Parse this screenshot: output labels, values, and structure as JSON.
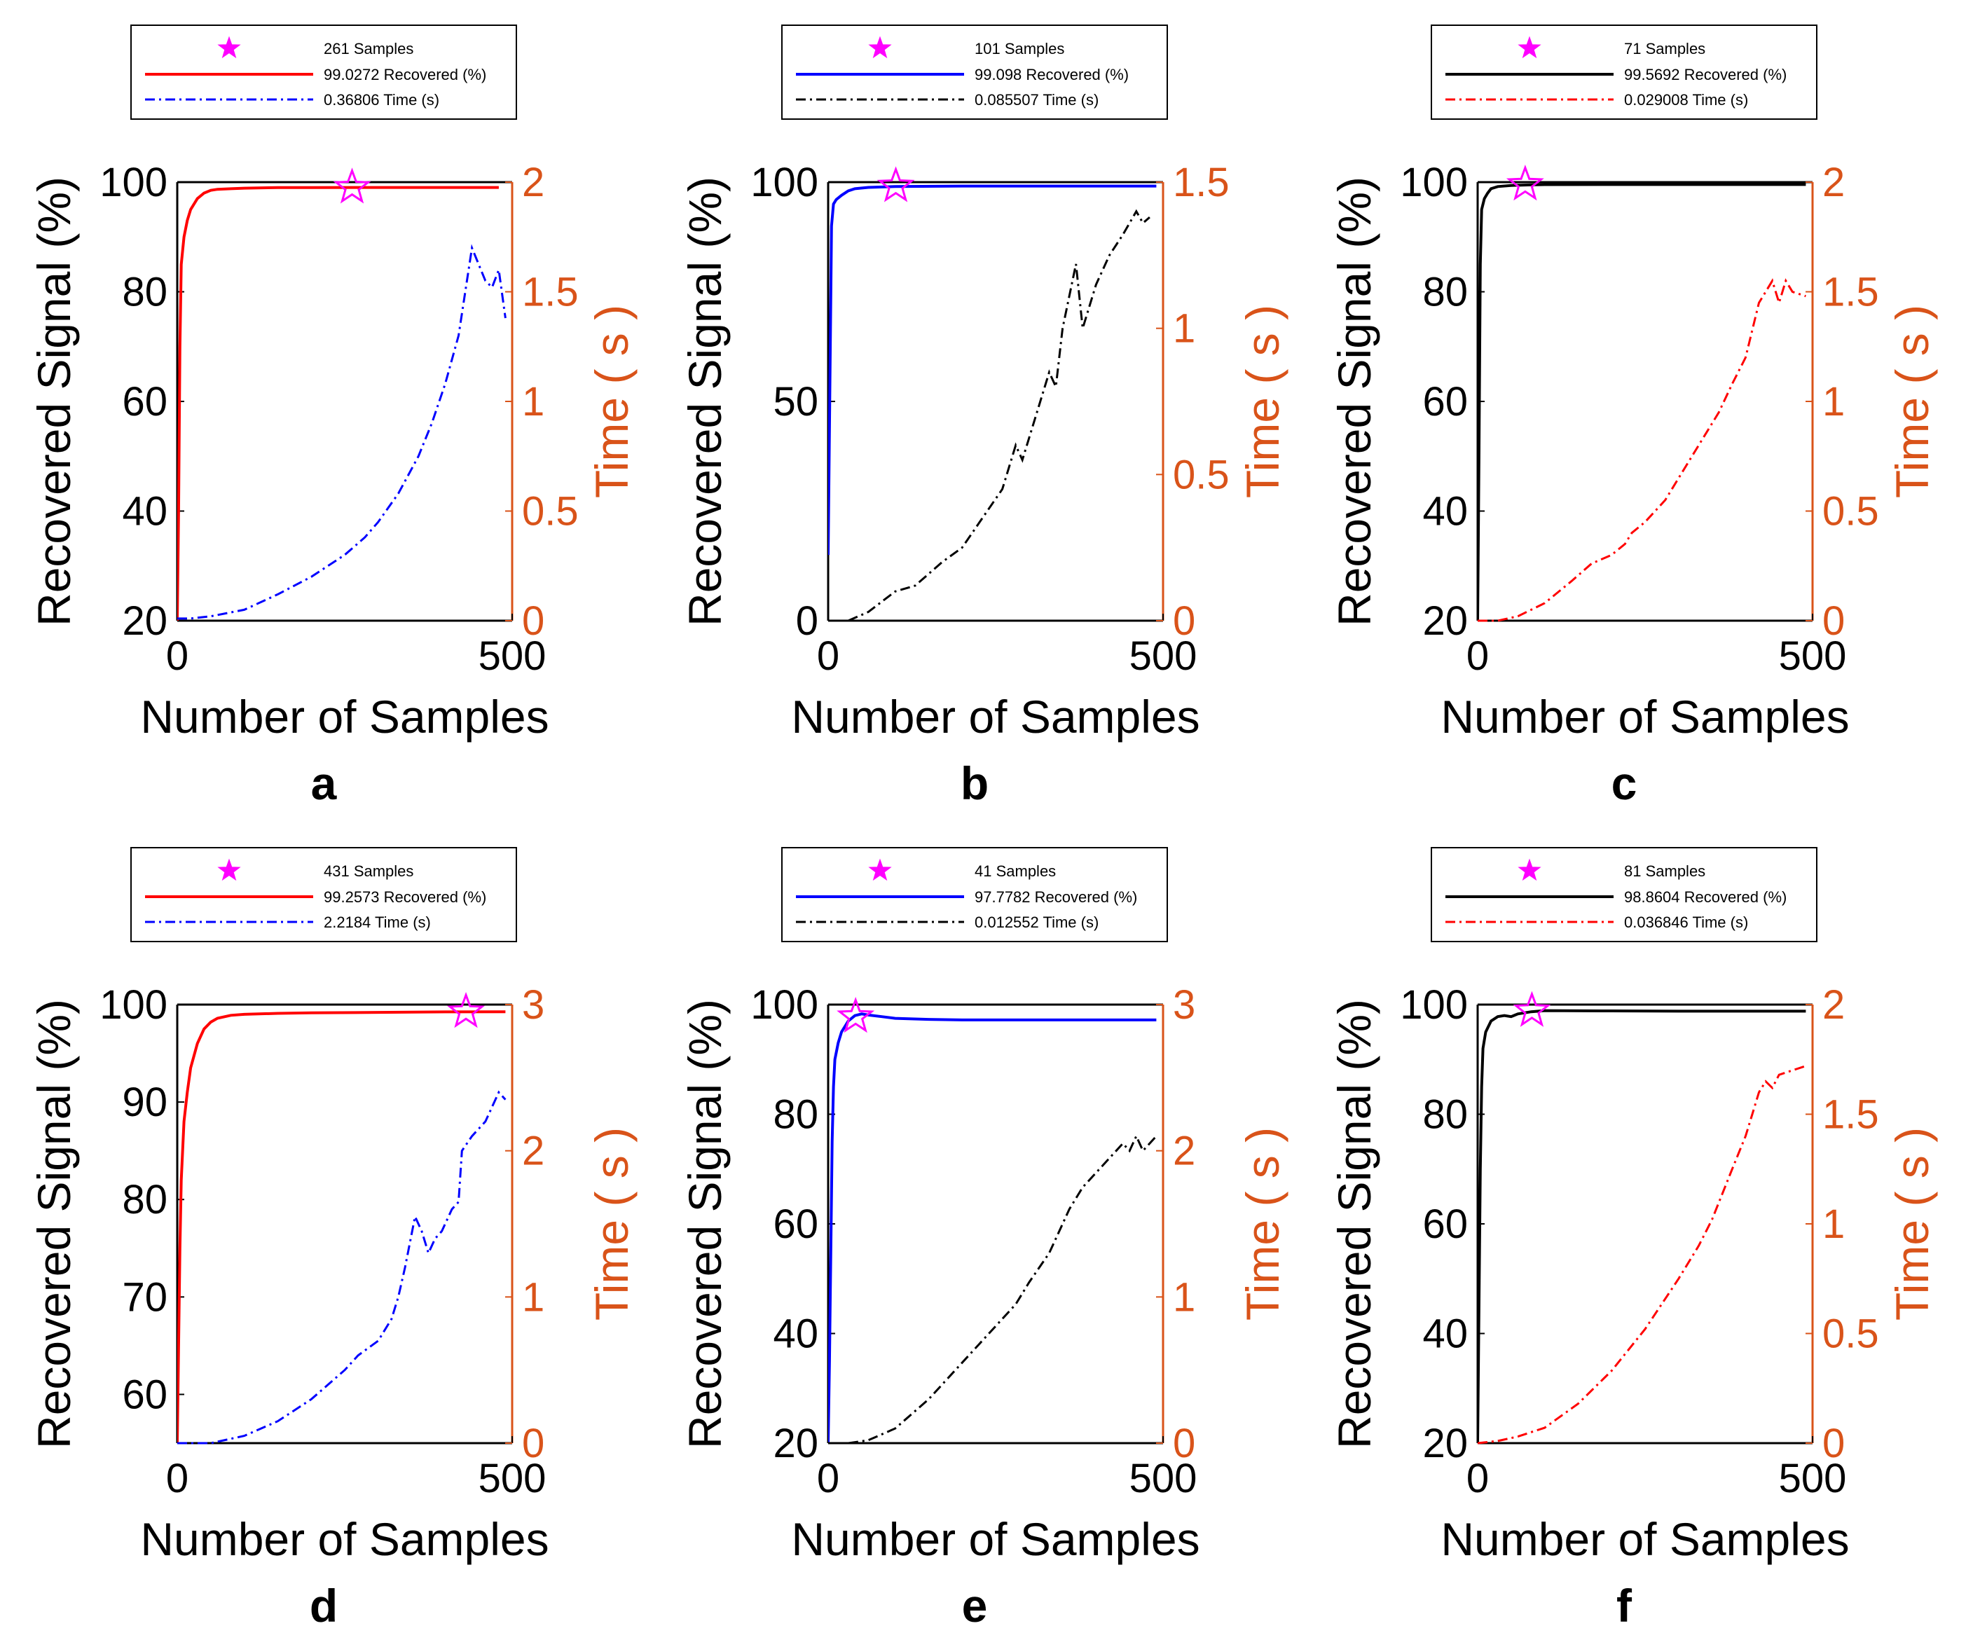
{
  "figure": {
    "xlabel": "Number of Samples",
    "ylabel_left": "Recovered Signal (%)",
    "ylabel_right": "Time ( s )"
  },
  "colors": {
    "right_axis": "#D95319",
    "star": "#FF00FF",
    "axis": "#000000"
  },
  "chart_data": [
    {
      "panel": "a",
      "type": "line",
      "xlim": [
        0,
        500
      ],
      "xticks": [
        0,
        500
      ],
      "ylim_left": [
        20,
        100
      ],
      "yticks_left": [
        20,
        40,
        60,
        80,
        100
      ],
      "ylim_right": [
        0,
        2
      ],
      "yticks_right": [
        0,
        0.5,
        1,
        1.5,
        2
      ],
      "xlabel": "Number of Samples",
      "ylabel_left": "Recovered Signal (%)",
      "ylabel_right": "Time ( s )",
      "recovered": {
        "color": "#FF0000",
        "style": "solid",
        "x": [
          0,
          2,
          4,
          6,
          10,
          15,
          20,
          30,
          40,
          50,
          60,
          80,
          100,
          150,
          200,
          300,
          400,
          480
        ],
        "y": [
          20,
          40,
          70,
          85,
          90,
          93,
          95,
          97,
          98,
          98.5,
          98.7,
          98.8,
          98.9,
          99.0,
          99.0,
          99.03,
          99.03,
          99.03
        ]
      },
      "time": {
        "color": "#0000FF",
        "style": "dashdot",
        "x": [
          0,
          20,
          50,
          100,
          150,
          200,
          250,
          280,
          300,
          330,
          360,
          380,
          400,
          420,
          440,
          460,
          470,
          480,
          490
        ],
        "y": [
          0.01,
          0.01,
          0.02,
          0.05,
          0.12,
          0.2,
          0.3,
          0.38,
          0.45,
          0.58,
          0.75,
          0.9,
          1.08,
          1.3,
          1.7,
          1.55,
          1.52,
          1.6,
          1.38
        ]
      },
      "marker": {
        "x": 261,
        "y": 99.0272
      },
      "legend": [
        "261 Samples",
        "99.0272 Recovered (%)",
        "0.36806 Time (s)"
      ]
    },
    {
      "panel": "b",
      "type": "line",
      "xlim": [
        0,
        500
      ],
      "xticks": [
        0,
        500
      ],
      "ylim_left": [
        0,
        100
      ],
      "yticks_left": [
        0,
        50,
        100
      ],
      "ylim_right": [
        0,
        1.5
      ],
      "yticks_right": [
        0,
        0.5,
        1,
        1.5
      ],
      "xlabel": "Number of Samples",
      "ylabel_left": "Recovered Signal (%)",
      "ylabel_right": "Time ( s )",
      "recovered": {
        "color": "#0000FF",
        "style": "solid",
        "x": [
          0,
          3,
          5,
          8,
          12,
          20,
          30,
          40,
          60,
          100,
          200,
          300,
          400,
          490
        ],
        "y": [
          15,
          60,
          90,
          95,
          96,
          97,
          98,
          98.5,
          98.8,
          99.0,
          99.1,
          99.1,
          99.1,
          99.1
        ]
      },
      "time": {
        "color": "#000000",
        "style": "dashdot",
        "x": [
          0,
          30,
          60,
          100,
          130,
          170,
          200,
          230,
          260,
          280,
          290,
          310,
          330,
          340,
          350,
          370,
          380,
          400,
          420,
          440,
          460,
          470,
          480
        ],
        "y": [
          0,
          0,
          0.03,
          0.1,
          0.12,
          0.2,
          0.25,
          0.35,
          0.45,
          0.6,
          0.55,
          0.7,
          0.85,
          0.8,
          1.0,
          1.22,
          1.0,
          1.15,
          1.25,
          1.32,
          1.4,
          1.36,
          1.38
        ]
      },
      "marker": {
        "x": 101,
        "y": 99.098
      },
      "legend": [
        "101 Samples",
        "99.098 Recovered (%)",
        "0.085507 Time (s)"
      ]
    },
    {
      "panel": "c",
      "type": "line",
      "xlim": [
        0,
        500
      ],
      "xticks": [
        0,
        500
      ],
      "ylim_left": [
        20,
        100
      ],
      "yticks_left": [
        20,
        40,
        60,
        80,
        100
      ],
      "ylim_right": [
        0,
        2
      ],
      "yticks_right": [
        0,
        0.5,
        1,
        1.5,
        2
      ],
      "xlabel": "Number of Samples",
      "ylabel_left": "Recovered Signal (%)",
      "ylabel_right": "Time ( s )",
      "recovered": {
        "color": "#000000",
        "style": "solid",
        "x": [
          0,
          2,
          4,
          6,
          10,
          15,
          20,
          30,
          50,
          80,
          100,
          200,
          300,
          400,
          490
        ],
        "y": [
          20,
          50,
          85,
          95,
          97,
          98,
          98.8,
          99.2,
          99.4,
          99.5,
          99.55,
          99.56,
          99.56,
          99.57,
          99.57
        ]
      },
      "time": {
        "color": "#FF0000",
        "style": "dashdot",
        "x": [
          0,
          30,
          60,
          100,
          140,
          170,
          200,
          220,
          230,
          250,
          280,
          300,
          330,
          360,
          380,
          400,
          420,
          430,
          440,
          450,
          460,
          470,
          490
        ],
        "y": [
          0,
          0,
          0.02,
          0.08,
          0.18,
          0.26,
          0.3,
          0.35,
          0.4,
          0.45,
          0.55,
          0.65,
          0.8,
          0.95,
          1.08,
          1.2,
          1.45,
          1.5,
          1.55,
          1.45,
          1.55,
          1.5,
          1.48
        ]
      },
      "marker": {
        "x": 71,
        "y": 99.5692
      },
      "legend": [
        "71 Samples",
        "99.5692 Recovered (%)",
        "0.029008 Time (s)"
      ]
    },
    {
      "panel": "d",
      "type": "line",
      "xlim": [
        0,
        500
      ],
      "xticks": [
        0,
        500
      ],
      "ylim_left": [
        55,
        100
      ],
      "yticks_left": [
        60,
        70,
        80,
        90,
        100
      ],
      "ylim_right": [
        0,
        3
      ],
      "yticks_right": [
        0,
        1,
        2,
        3
      ],
      "xlabel": "Number of Samples",
      "ylabel_left": "Recovered Signal (%)",
      "ylabel_right": "Time ( s )",
      "recovered": {
        "color": "#FF0000",
        "style": "solid",
        "x": [
          0,
          2,
          4,
          6,
          10,
          15,
          20,
          30,
          40,
          50,
          60,
          80,
          100,
          150,
          200,
          300,
          400,
          490
        ],
        "y": [
          55,
          65,
          75,
          82,
          88,
          91,
          93.5,
          96,
          97.5,
          98.2,
          98.6,
          98.9,
          99.0,
          99.1,
          99.15,
          99.2,
          99.25,
          99.26
        ]
      },
      "time": {
        "color": "#0000FF",
        "style": "dashdot",
        "x": [
          0,
          50,
          100,
          150,
          200,
          250,
          270,
          300,
          320,
          330,
          340,
          355,
          365,
          375,
          385,
          395,
          410,
          420,
          425,
          440,
          460,
          470,
          480,
          490
        ],
        "y": [
          0,
          0,
          0.05,
          0.15,
          0.3,
          0.5,
          0.6,
          0.7,
          0.85,
          1.0,
          1.2,
          1.55,
          1.45,
          1.3,
          1.4,
          1.45,
          1.6,
          1.65,
          2.0,
          2.1,
          2.2,
          2.3,
          2.4,
          2.35
        ]
      },
      "marker": {
        "x": 431,
        "y": 99.2573
      },
      "legend": [
        "431 Samples",
        "99.2573 Recovered (%)",
        "2.2184 Time (s)"
      ]
    },
    {
      "panel": "e",
      "type": "line",
      "xlim": [
        0,
        500
      ],
      "xticks": [
        0,
        500
      ],
      "ylim_left": [
        20,
        100
      ],
      "yticks_left": [
        20,
        40,
        60,
        80,
        100
      ],
      "ylim_right": [
        0,
        3
      ],
      "yticks_right": [
        0,
        1,
        2,
        3
      ],
      "xlabel": "Number of Samples",
      "ylabel_left": "Recovered Signal (%)",
      "ylabel_right": "Time ( s )",
      "recovered": {
        "color": "#0000FF",
        "style": "solid",
        "x": [
          0,
          2,
          4,
          6,
          8,
          10,
          15,
          20,
          25,
          30,
          40,
          50,
          60,
          80,
          100,
          150,
          200,
          300,
          400,
          490
        ],
        "y": [
          20,
          35,
          55,
          75,
          85,
          90,
          93,
          95,
          96,
          97,
          98,
          98.3,
          98.1,
          97.8,
          97.5,
          97.3,
          97.2,
          97.2,
          97.2,
          97.2
        ]
      },
      "time": {
        "color": "#000000",
        "style": "dashdot",
        "x": [
          0,
          30,
          60,
          100,
          150,
          200,
          250,
          280,
          300,
          330,
          360,
          380,
          400,
          420,
          430,
          440,
          450,
          460,
          470,
          490
        ],
        "y": [
          0,
          0,
          0.02,
          0.1,
          0.3,
          0.55,
          0.8,
          0.95,
          1.1,
          1.3,
          1.6,
          1.75,
          1.85,
          1.95,
          2.0,
          2.05,
          2.0,
          2.1,
          2.0,
          2.1
        ]
      },
      "marker": {
        "x": 41,
        "y": 97.7782
      },
      "legend": [
        "41 Samples",
        "97.7782 Recovered (%)",
        "0.012552 Time (s)"
      ]
    },
    {
      "panel": "f",
      "type": "line",
      "xlim": [
        0,
        500
      ],
      "xticks": [
        0,
        500
      ],
      "ylim_left": [
        20,
        100
      ],
      "yticks_left": [
        20,
        40,
        60,
        80,
        100
      ],
      "ylim_right": [
        0,
        2
      ],
      "yticks_right": [
        0,
        0.5,
        1,
        1.5,
        2
      ],
      "xlabel": "Number of Samples",
      "ylabel_left": "Recovered Signal (%)",
      "ylabel_right": "Time ( s )",
      "recovered": {
        "color": "#000000",
        "style": "solid",
        "x": [
          0,
          2,
          4,
          6,
          8,
          12,
          20,
          30,
          40,
          50,
          60,
          80,
          100,
          200,
          300,
          400,
          490
        ],
        "y": [
          20,
          45,
          70,
          85,
          92,
          95,
          97,
          97.8,
          98,
          97.8,
          98.3,
          98.7,
          98.9,
          98.85,
          98.8,
          98.8,
          98.8
        ]
      },
      "time": {
        "color": "#FF0000",
        "style": "dashdot",
        "x": [
          0,
          30,
          60,
          80,
          100,
          150,
          200,
          250,
          300,
          330,
          350,
          380,
          400,
          410,
          420,
          430,
          440,
          450,
          470,
          490
        ],
        "y": [
          0,
          0.01,
          0.03,
          0.05,
          0.07,
          0.18,
          0.33,
          0.52,
          0.75,
          0.9,
          1.02,
          1.25,
          1.4,
          1.5,
          1.6,
          1.65,
          1.62,
          1.68,
          1.7,
          1.72
        ]
      },
      "marker": {
        "x": 81,
        "y": 98.8604
      },
      "legend": [
        "81 Samples",
        "98.8604 Recovered (%)",
        "0.036846 Time (s)"
      ]
    }
  ]
}
